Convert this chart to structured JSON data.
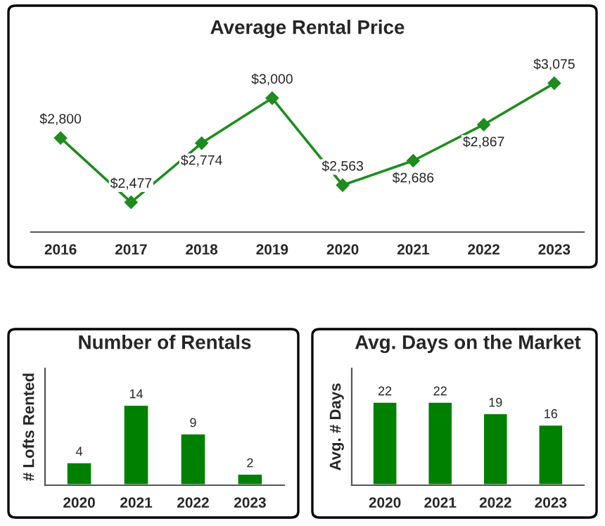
{
  "chart_data": [
    {
      "type": "line",
      "title": "Average Rental Price",
      "categories": [
        "2016",
        "2017",
        "2018",
        "2019",
        "2020",
        "2021",
        "2022",
        "2023"
      ],
      "series": [
        {
          "color": "#1e8c1e",
          "values": [
            2800,
            2477,
            2774,
            3000,
            2563,
            2686,
            2867,
            3075
          ],
          "value_labels": [
            "$2,800",
            "$2,477",
            "$2,774",
            "$3,000",
            "$2,563",
            "$2,686",
            "$2,867",
            "$3,075"
          ]
        }
      ],
      "marker": "diamond",
      "line_style": "solid",
      "tick_labels": "x",
      "grid": false
    },
    {
      "type": "bar",
      "title": "Number of Rentals",
      "ylabel": "# Lofts Rented",
      "categories": [
        "2020",
        "2021",
        "2022",
        "2023"
      ],
      "series": [
        {
          "color": "#008000",
          "values": [
            4,
            14,
            9,
            2
          ]
        }
      ],
      "data_labels": true,
      "tick_labels": "x",
      "grid": false
    },
    {
      "type": "bar",
      "title": "Avg. Days on the Market",
      "ylabel": "Avg. # Days",
      "categories": [
        "2020",
        "2021",
        "2022",
        "2023"
      ],
      "series": [
        {
          "color": "#008000",
          "values": [
            22,
            22,
            19,
            16
          ]
        }
      ],
      "data_labels": true,
      "tick_labels": "x",
      "grid": false
    }
  ]
}
